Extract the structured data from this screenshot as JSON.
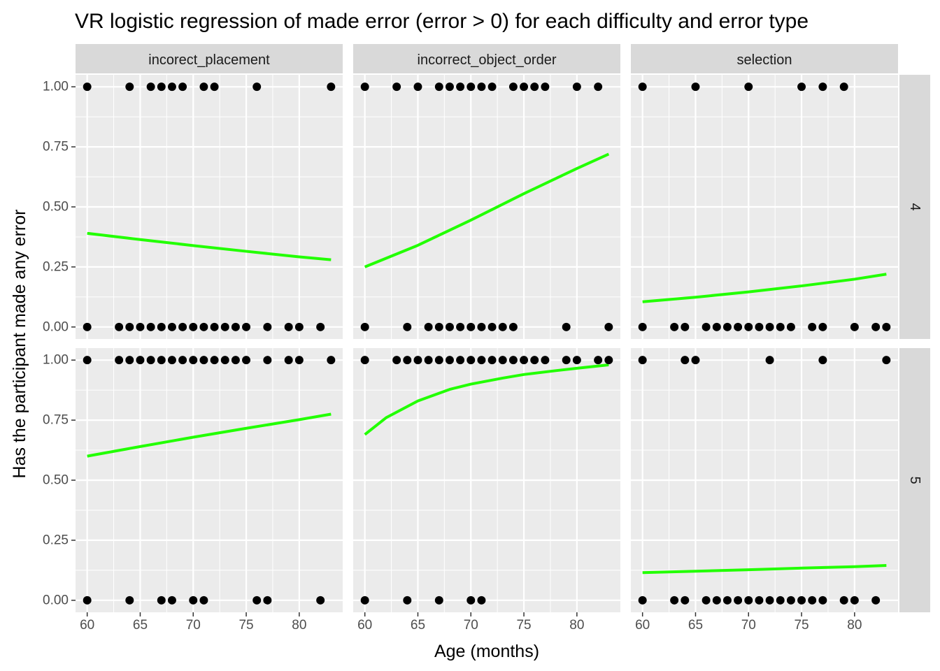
{
  "chart_data": {
    "type": "scatter",
    "title": "VR logistic regression of made error (error > 0) for each difficulty and error type",
    "xlabel": "Age (months)",
    "ylabel": "Has the participant made any error",
    "xlim": [
      58.9,
      84.1
    ],
    "ylim": [
      -0.05,
      1.05
    ],
    "xticks": [
      60,
      65,
      70,
      75,
      80
    ],
    "xtick_labels": [
      "60",
      "65",
      "70",
      "75",
      "80"
    ],
    "yticks": [
      0,
      0.25,
      0.5,
      0.75,
      1
    ],
    "ytick_labels": [
      "0.00",
      "0.25",
      "0.50",
      "0.75",
      "1.00"
    ],
    "grid": true,
    "facet_columns": [
      "incorect_placement",
      "incorrect_object_order",
      "selection"
    ],
    "facet_rows": [
      "4",
      "5"
    ],
    "point_color": "#000000",
    "fit_color": "#22ff00",
    "panel_bg": "#ebebeb",
    "strip_bg": "#d9d9d9",
    "panels": [
      {
        "row": "4",
        "col": "incorect_placement",
        "points_y1": [
          60,
          64,
          66,
          67,
          68,
          69,
          71,
          72,
          76,
          83
        ],
        "points_y0": [
          60,
          63,
          64,
          65,
          66,
          67,
          68,
          69,
          70,
          71,
          72,
          73,
          74,
          75,
          77,
          79,
          80,
          82
        ],
        "fit": {
          "x": [
            60,
            65,
            70,
            75,
            80,
            83
          ],
          "y": [
            0.39,
            0.364,
            0.339,
            0.315,
            0.292,
            0.28
          ]
        }
      },
      {
        "row": "4",
        "col": "incorrect_object_order",
        "points_y1": [
          60,
          63,
          65,
          67,
          68,
          69,
          70,
          71,
          72,
          74,
          75,
          76,
          77,
          80,
          82
        ],
        "points_y0": [
          60,
          64,
          66,
          67,
          68,
          69,
          70,
          71,
          72,
          73,
          74,
          79,
          83
        ],
        "fit": {
          "x": [
            60,
            65,
            70,
            75,
            80,
            83
          ],
          "y": [
            0.25,
            0.34,
            0.445,
            0.555,
            0.66,
            0.72
          ]
        }
      },
      {
        "row": "4",
        "col": "selection",
        "points_y1": [
          60,
          65,
          70,
          75,
          77,
          79
        ],
        "points_y0": [
          60,
          63,
          64,
          66,
          67,
          68,
          69,
          70,
          71,
          72,
          73,
          74,
          76,
          77,
          80,
          82,
          83
        ],
        "fit": {
          "x": [
            60,
            65,
            70,
            75,
            80,
            83
          ],
          "y": [
            0.105,
            0.124,
            0.146,
            0.171,
            0.199,
            0.22
          ]
        }
      },
      {
        "row": "5",
        "col": "incorect_placement",
        "points_y1": [
          60,
          63,
          64,
          65,
          66,
          67,
          68,
          69,
          70,
          71,
          72,
          73,
          74,
          75,
          77,
          79,
          80,
          83
        ],
        "points_y0": [
          60,
          64,
          67,
          68,
          70,
          71,
          76,
          77,
          82
        ],
        "fit": {
          "x": [
            60,
            65,
            70,
            75,
            80,
            83
          ],
          "y": [
            0.6,
            0.64,
            0.679,
            0.716,
            0.752,
            0.775
          ]
        }
      },
      {
        "row": "5",
        "col": "incorrect_object_order",
        "points_y1": [
          60,
          63,
          64,
          65,
          66,
          67,
          68,
          69,
          70,
          71,
          72,
          73,
          74,
          75,
          76,
          77,
          79,
          80,
          82,
          83
        ],
        "points_y0": [
          60,
          64,
          67,
          70,
          71
        ],
        "fit": {
          "x": [
            60,
            62,
            65,
            68,
            70,
            73,
            75,
            78,
            80,
            83
          ],
          "y": [
            0.69,
            0.76,
            0.83,
            0.878,
            0.9,
            0.925,
            0.94,
            0.956,
            0.966,
            0.98
          ]
        }
      },
      {
        "row": "5",
        "col": "selection",
        "points_y1": [
          60,
          64,
          65,
          72,
          77,
          83
        ],
        "points_y0": [
          60,
          63,
          64,
          66,
          67,
          68,
          69,
          70,
          71,
          72,
          73,
          74,
          75,
          76,
          77,
          79,
          80,
          82
        ],
        "fit": {
          "x": [
            60,
            65,
            70,
            75,
            80,
            83
          ],
          "y": [
            0.115,
            0.121,
            0.127,
            0.134,
            0.14,
            0.145
          ]
        }
      }
    ]
  }
}
